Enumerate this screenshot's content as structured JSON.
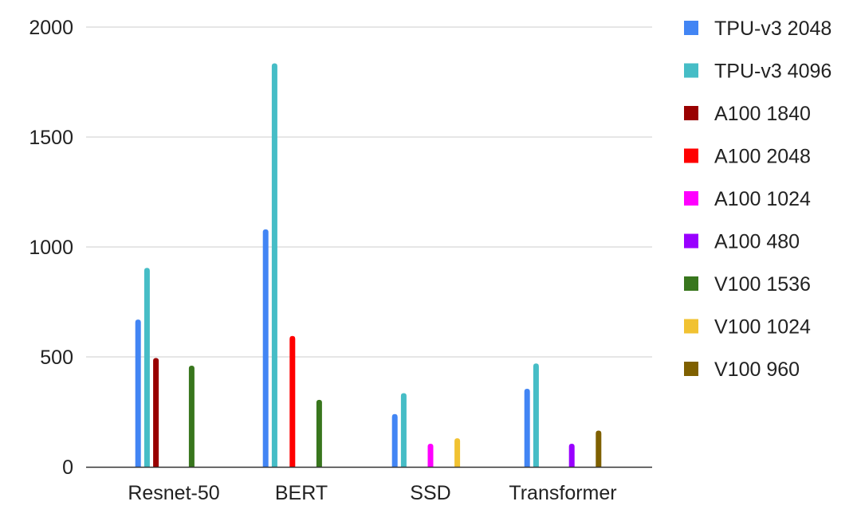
{
  "chart_data": {
    "type": "bar",
    "title": "",
    "xlabel": "",
    "ylabel": "",
    "ylim": [
      0,
      2000
    ],
    "yticks": [
      0,
      500,
      1000,
      1500,
      2000
    ],
    "grid": true,
    "legend_position": "right",
    "categories": [
      "Resnet-50",
      "BERT",
      "SSD",
      "Transformer"
    ],
    "series": [
      {
        "name": "TPU-v3 2048",
        "color": "#4285f4",
        "values": [
          670,
          1080,
          240,
          355
        ]
      },
      {
        "name": "TPU-v3 4096",
        "color": "#46bdc6",
        "values": [
          905,
          1835,
          335,
          470
        ]
      },
      {
        "name": "A100 1840",
        "color": "#990000",
        "values": [
          495,
          null,
          null,
          null
        ]
      },
      {
        "name": "A100 2048",
        "color": "#ff0000",
        "values": [
          null,
          595,
          null,
          null
        ]
      },
      {
        "name": "A100 1024",
        "color": "#ff00ff",
        "values": [
          null,
          null,
          105,
          null
        ]
      },
      {
        "name": "A100 480",
        "color": "#9900ff",
        "values": [
          null,
          null,
          null,
          105
        ]
      },
      {
        "name": "V100 1536",
        "color": "#38761d",
        "values": [
          460,
          305,
          null,
          null
        ]
      },
      {
        "name": "V100 1024",
        "color": "#f1c232",
        "values": [
          null,
          null,
          130,
          null
        ]
      },
      {
        "name": "V100 960",
        "color": "#7f6000",
        "values": [
          null,
          null,
          null,
          165
        ]
      }
    ]
  }
}
